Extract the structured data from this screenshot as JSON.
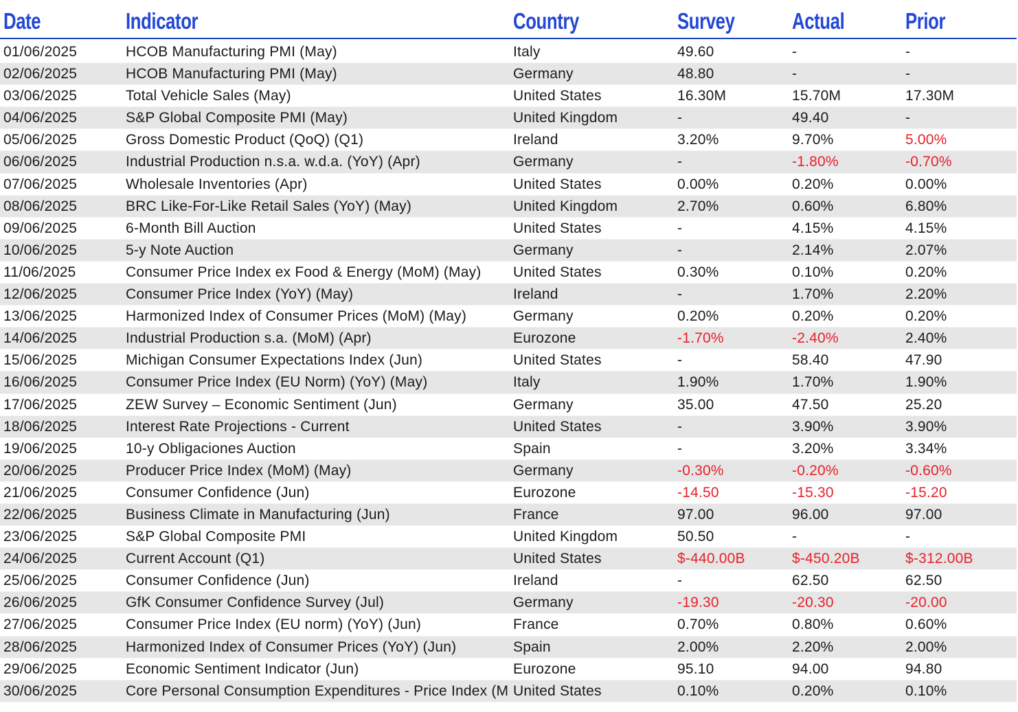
{
  "headers": {
    "date": "Date",
    "indicator": "Indicator",
    "country": "Country",
    "survey": "Survey",
    "actual": "Actual",
    "prior": "Prior"
  },
  "colors": {
    "header": "#2347d6",
    "negative": "#e8202a",
    "stripe": "#e6e6e6"
  },
  "rows": [
    {
      "date": "01/06/2025",
      "indicator": "HCOB Manufacturing PMI (May)",
      "country": "Italy",
      "survey": "49.60",
      "actual": "-",
      "prior": "-",
      "red": []
    },
    {
      "date": "02/06/2025",
      "indicator": "HCOB Manufacturing PMI (May)",
      "country": "Germany",
      "survey": "48.80",
      "actual": "-",
      "prior": "-",
      "red": []
    },
    {
      "date": "03/06/2025",
      "indicator": "Total Vehicle Sales (May)",
      "country": "United States",
      "survey": "16.30M",
      "actual": "15.70M",
      "prior": "17.30M",
      "red": []
    },
    {
      "date": "04/06/2025",
      "indicator": "S&P Global Composite PMI (May)",
      "country": "United Kingdom",
      "survey": "-",
      "actual": "49.40",
      "prior": "-",
      "red": []
    },
    {
      "date": "05/06/2025",
      "indicator": "Gross Domestic Product (QoQ) (Q1)",
      "country": "Ireland",
      "survey": "3.20%",
      "actual": "9.70%",
      "prior": "5.00%",
      "red": [
        "prior"
      ]
    },
    {
      "date": "06/06/2025",
      "indicator": "Industrial Production n.s.a. w.d.a. (YoY) (Apr)",
      "country": "Germany",
      "survey": "-",
      "actual": "-1.80%",
      "prior": "-0.70%",
      "red": [
        "actual",
        "prior"
      ]
    },
    {
      "date": "07/06/2025",
      "indicator": "Wholesale Inventories (Apr)",
      "country": "United States",
      "survey": "0.00%",
      "actual": "0.20%",
      "prior": "0.00%",
      "red": []
    },
    {
      "date": "08/06/2025",
      "indicator": "BRC Like-For-Like Retail Sales (YoY) (May)",
      "country": "United Kingdom",
      "survey": "2.70%",
      "actual": "0.60%",
      "prior": "6.80%",
      "red": []
    },
    {
      "date": "09/06/2025",
      "indicator": "6-Month Bill Auction",
      "country": "United States",
      "survey": "-",
      "actual": "4.15%",
      "prior": "4.15%",
      "red": []
    },
    {
      "date": "10/06/2025",
      "indicator": "5-y Note Auction",
      "country": "Germany",
      "survey": "-",
      "actual": "2.14%",
      "prior": "2.07%",
      "red": []
    },
    {
      "date": "11/06/2025",
      "indicator": "Consumer Price Index ex Food & Energy (MoM) (May)",
      "country": "United States",
      "survey": "0.30%",
      "actual": "0.10%",
      "prior": "0.20%",
      "red": []
    },
    {
      "date": "12/06/2025",
      "indicator": "Consumer Price Index (YoY) (May)",
      "country": "Ireland",
      "survey": "-",
      "actual": "1.70%",
      "prior": "2.20%",
      "red": []
    },
    {
      "date": "13/06/2025",
      "indicator": "Harmonized Index of Consumer Prices (MoM) (May)",
      "country": "Germany",
      "survey": "0.20%",
      "actual": "0.20%",
      "prior": "0.20%",
      "red": []
    },
    {
      "date": "14/06/2025",
      "indicator": "Industrial Production s.a. (MoM) (Apr)",
      "country": "Eurozone",
      "survey": "-1.70%",
      "actual": "-2.40%",
      "prior": "2.40%",
      "red": [
        "survey",
        "actual"
      ]
    },
    {
      "date": "15/06/2025",
      "indicator": "Michigan Consumer Expectations Index (Jun)",
      "country": "United States",
      "survey": "-",
      "actual": "58.40",
      "prior": "47.90",
      "red": []
    },
    {
      "date": "16/06/2025",
      "indicator": "Consumer Price Index (EU Norm) (YoY) (May)",
      "country": "Italy",
      "survey": "1.90%",
      "actual": "1.70%",
      "prior": "1.90%",
      "red": []
    },
    {
      "date": "17/06/2025",
      "indicator": "ZEW Survey – Economic Sentiment (Jun)",
      "country": "Germany",
      "survey": "35.00",
      "actual": "47.50",
      "prior": "25.20",
      "red": []
    },
    {
      "date": "18/06/2025",
      "indicator": "Interest Rate Projections - Current",
      "country": "United States",
      "survey": "-",
      "actual": "3.90%",
      "prior": "3.90%",
      "red": []
    },
    {
      "date": "19/06/2025",
      "indicator": "10-y Obligaciones Auction",
      "country": "Spain",
      "survey": "-",
      "actual": "3.20%",
      "prior": "3.34%",
      "red": []
    },
    {
      "date": "20/06/2025",
      "indicator": "Producer Price Index (MoM) (May)",
      "country": "Germany",
      "survey": "-0.30%",
      "actual": "-0.20%",
      "prior": "-0.60%",
      "red": [
        "survey",
        "actual",
        "prior"
      ]
    },
    {
      "date": "21/06/2025",
      "indicator": "Consumer Confidence (Jun)",
      "country": "Eurozone",
      "survey": "-14.50",
      "actual": "-15.30",
      "prior": "-15.20",
      "red": [
        "survey",
        "actual",
        "prior"
      ]
    },
    {
      "date": "22/06/2025",
      "indicator": "Business Climate in Manufacturing (Jun)",
      "country": "France",
      "survey": "97.00",
      "actual": "96.00",
      "prior": "97.00",
      "red": []
    },
    {
      "date": "23/06/2025",
      "indicator": "S&P Global Composite PMI",
      "country": "United Kingdom",
      "survey": "50.50",
      "actual": "-",
      "prior": "-",
      "red": []
    },
    {
      "date": "24/06/2025",
      "indicator": "Current Account (Q1)",
      "country": "United States",
      "survey": "$-440.00B",
      "actual": "$-450.20B",
      "prior": "$-312.00B",
      "red": [
        "survey",
        "actual",
        "prior"
      ]
    },
    {
      "date": "25/06/2025",
      "indicator": "Consumer Confidence (Jun)",
      "country": "Ireland",
      "survey": "-",
      "actual": "62.50",
      "prior": "62.50",
      "red": []
    },
    {
      "date": "26/06/2025",
      "indicator": "GfK Consumer Confidence Survey (Jul)",
      "country": "Germany",
      "survey": "-19.30",
      "actual": "-20.30",
      "prior": "-20.00",
      "red": [
        "survey",
        "actual",
        "prior"
      ]
    },
    {
      "date": "27/06/2025",
      "indicator": "Consumer Price Index (EU norm) (YoY) (Jun)",
      "country": "France",
      "survey": "0.70%",
      "actual": "0.80%",
      "prior": "0.60%",
      "red": []
    },
    {
      "date": "28/06/2025",
      "indicator": "Harmonized Index of Consumer Prices (YoY) (Jun)",
      "country": "Spain",
      "survey": "2.00%",
      "actual": "2.20%",
      "prior": "2.00%",
      "red": []
    },
    {
      "date": "29/06/2025",
      "indicator": "Economic Sentiment Indicator (Jun)",
      "country": "Eurozone",
      "survey": "95.10",
      "actual": "94.00",
      "prior": "94.80",
      "red": []
    },
    {
      "date": "30/06/2025",
      "indicator": "Core Personal Consumption Expenditures - Price Index (M",
      "country": "United States",
      "survey": "0.10%",
      "actual": "0.20%",
      "prior": "0.10%",
      "red": []
    }
  ]
}
